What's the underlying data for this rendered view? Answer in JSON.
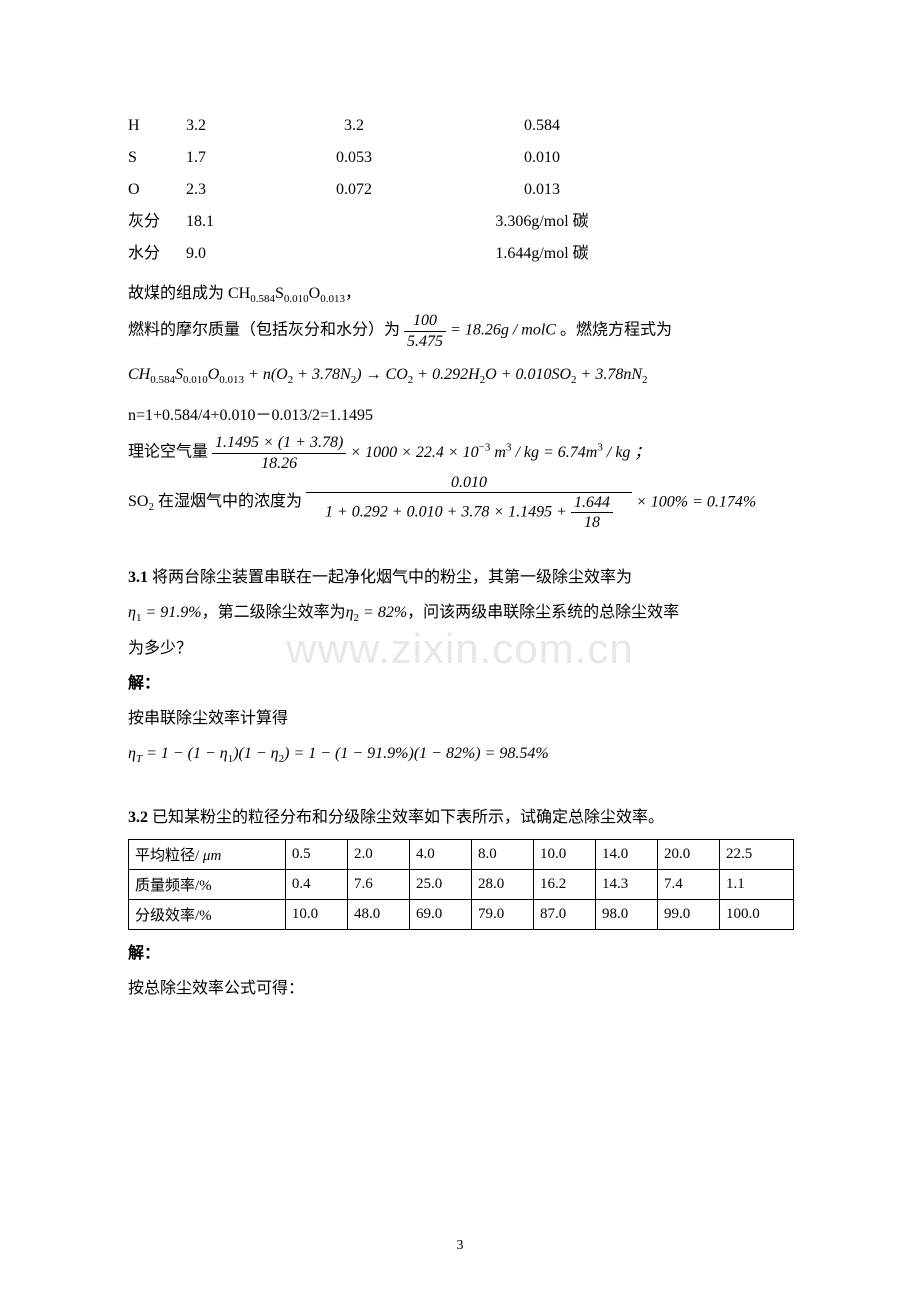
{
  "colors": {
    "text": "#000000",
    "bg": "#ffffff",
    "watermark": "#e7e7e7",
    "border": "#000000"
  },
  "fonts": {
    "body": "SimSun, Times New Roman, serif",
    "body_size_pt": 12,
    "math": "Times New Roman, serif"
  },
  "comp_table": {
    "rows": [
      {
        "el": "H",
        "v1": "3.2",
        "v2": "3.2",
        "v3": "0.584"
      },
      {
        "el": "S",
        "v1": "1.7",
        "v2": "0.053",
        "v3": "0.010"
      },
      {
        "el": "O",
        "v1": "2.3",
        "v2": "0.072",
        "v3": "0.013"
      },
      {
        "el": "灰分",
        "v1": "18.1",
        "v2": "",
        "v3": "3.306g/mol 碳"
      },
      {
        "el": "水分",
        "v1": "9.0",
        "v2": "",
        "v3": "1.644g/mol 碳"
      }
    ]
  },
  "lines": {
    "comp_formula": "故煤的组成为 CH",
    "comp_sub": "0.584",
    "comp_s": "S",
    "comp_ssub": "0.010",
    "comp_o": "O",
    "comp_osub": "0.013",
    "comp_tail": "，",
    "molar_pre": "燃料的摩尔质量（包括灰分和水分）为",
    "frac1_num": "100",
    "frac1_den": "5.475",
    "molar_eq": " = 18.26g / molC",
    "molar_post": "。燃烧方程式为",
    "combustion": "CH₀.₅₈₄S₀.₀₁₀O₀.₀₁₃ + n(O₂ + 3.78N₂) → CO₂ + 0.292H₂O + 0.010SO₂ + 3.78nN₂",
    "n_calc": "n=1+0.584/4+0.010－0.013/2=1.1495",
    "air_pre": "理论空气量",
    "frac2_num": "1.1495 × (1 + 3.78)",
    "frac2_den": "18.26",
    "air_post": " × 1000 × 22.4 × 10⁻³ m³ / kg = 6.74m³ / kg ；",
    "so2_pre": "SO₂ 在湿烟气中的浓度为",
    "frac3_num": "0.010",
    "frac3_den_a": "1 + 0.292 + 0.010 + 3.78 × 1.1495 + ",
    "frac3_den_inner_num": "1.644",
    "frac3_den_inner_den": "18",
    "so2_post": " × 100% = 0.174%"
  },
  "q31": {
    "num": "3.1",
    "text_a": " 将两台除尘装置串联在一起净化烟气中的粉尘，其第一级除尘效率为",
    "eta1": "η₁ = 91.9%",
    "text_b": "，第二级除尘效率为",
    "eta2": "η₂ = 82%",
    "text_c": "，问该两级串联除尘系统的总除尘效率",
    "text_d": "为多少？",
    "sol_label": "解：",
    "sol_line": "按串联除尘效率计算得",
    "eq": "ηT = 1 − (1 − η₁)(1 − η₂) = 1 − (1 − 91.9%)(1 − 82%) = 98.54%"
  },
  "q32": {
    "num": "3.2",
    "text": " 已知某粉尘的粒径分布和分级除尘效率如下表所示，试确定总除尘效率。",
    "table": {
      "headers": [
        "平均粒径/ μm",
        "0.5",
        "2.0",
        "4.0",
        "8.0",
        "10.0",
        "14.0",
        "20.0",
        "22.5"
      ],
      "row1": [
        "质量频率/%",
        "0.4",
        "7.6",
        "25.0",
        "28.0",
        "16.2",
        "14.3",
        "7.4",
        "1.1"
      ],
      "row2": [
        "分级效率/%",
        "10.0",
        "48.0",
        "69.0",
        "79.0",
        "87.0",
        "98.0",
        "99.0",
        "100.0"
      ]
    },
    "sol_label": "解：",
    "sol_line": "按总除尘效率公式可得："
  },
  "watermark": "www.zixin.com.cn",
  "page_number": "3"
}
